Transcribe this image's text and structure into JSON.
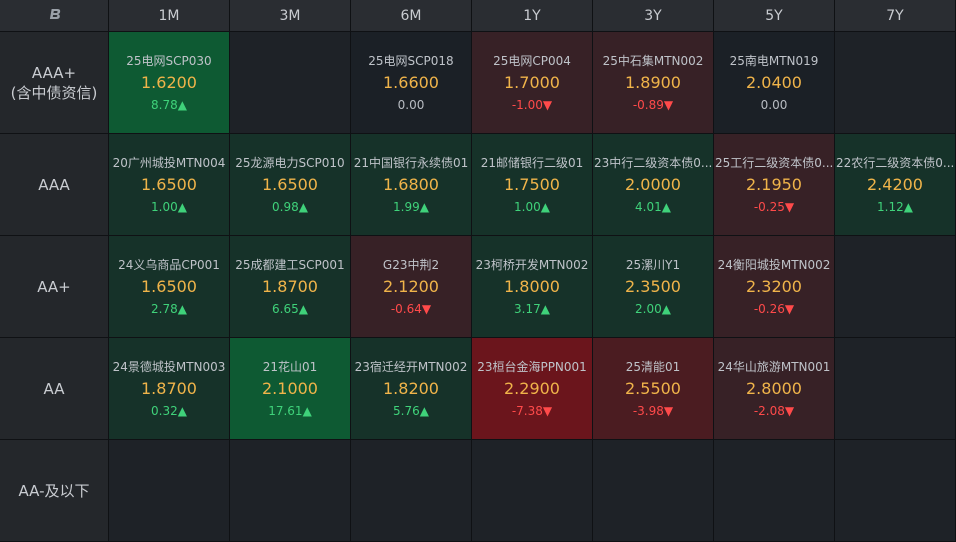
{
  "corner_icon": "logo-icon",
  "columns": [
    "1M",
    "3M",
    "6M",
    "1Y",
    "3Y",
    "5Y",
    "7Y"
  ],
  "rows": [
    {
      "label_lines": [
        "AAA+",
        "(含中债资信)"
      ],
      "cells": [
        {
          "name": "25电网SCP030",
          "rate": "1.6200",
          "change": "8.78",
          "dir": "up",
          "tint": "g3"
        },
        null,
        {
          "name": "25电网SCP018",
          "rate": "1.6600",
          "change": "0.00",
          "dir": "flat",
          "tint": "neutral"
        },
        {
          "name": "25电网CP004",
          "rate": "1.7000",
          "change": "-1.00",
          "dir": "down",
          "tint": "r1"
        },
        {
          "name": "25中石集MTN002",
          "rate": "1.8900",
          "change": "-0.89",
          "dir": "down",
          "tint": "r1"
        },
        {
          "name": "25南电MTN019",
          "rate": "2.0400",
          "change": "0.00",
          "dir": "flat",
          "tint": "neutral"
        },
        null
      ]
    },
    {
      "label_lines": [
        "AAA"
      ],
      "cells": [
        {
          "name": "20广州城投MTN004",
          "rate": "1.6500",
          "change": "1.00",
          "dir": "up",
          "tint": "g1"
        },
        {
          "name": "25龙源电力SCP010",
          "rate": "1.6500",
          "change": "0.98",
          "dir": "up",
          "tint": "g1"
        },
        {
          "name": "21中国银行永续债01",
          "rate": "1.6800",
          "change": "1.99",
          "dir": "up",
          "tint": "g1"
        },
        {
          "name": "21邮储银行二级01",
          "rate": "1.7500",
          "change": "1.00",
          "dir": "up",
          "tint": "g1"
        },
        {
          "name": "23中行二级资本债0...",
          "rate": "2.0000",
          "change": "4.01",
          "dir": "up",
          "tint": "g1"
        },
        {
          "name": "25工行二级资本债0...",
          "rate": "2.1950",
          "change": "-0.25",
          "dir": "down",
          "tint": "r1"
        },
        {
          "name": "22农行二级资本债0...",
          "rate": "2.4200",
          "change": "1.12",
          "dir": "up",
          "tint": "g1"
        }
      ]
    },
    {
      "label_lines": [
        "AA+"
      ],
      "cells": [
        {
          "name": "24义乌商品CP001",
          "rate": "1.6500",
          "change": "2.78",
          "dir": "up",
          "tint": "g1"
        },
        {
          "name": "25成都建工SCP001",
          "rate": "1.8700",
          "change": "6.65",
          "dir": "up",
          "tint": "g1"
        },
        {
          "name": "G23中荆2",
          "rate": "2.1200",
          "change": "-0.64",
          "dir": "down",
          "tint": "r1"
        },
        {
          "name": "23柯桥开发MTN002",
          "rate": "1.8000",
          "change": "3.17",
          "dir": "up",
          "tint": "g1"
        },
        {
          "name": "25漯川Y1",
          "rate": "2.3500",
          "change": "2.00",
          "dir": "up",
          "tint": "g1"
        },
        {
          "name": "24衡阳城投MTN002",
          "rate": "2.3200",
          "change": "-0.26",
          "dir": "down",
          "tint": "r1"
        },
        null
      ]
    },
    {
      "label_lines": [
        "AA"
      ],
      "cells": [
        {
          "name": "24景德城投MTN003",
          "rate": "1.8700",
          "change": "0.32",
          "dir": "up",
          "tint": "g1"
        },
        {
          "name": "21花山01",
          "rate": "2.1000",
          "change": "17.61",
          "dir": "up",
          "tint": "g3"
        },
        {
          "name": "23宿迁经开MTN002",
          "rate": "1.8200",
          "change": "5.76",
          "dir": "up",
          "tint": "g1"
        },
        {
          "name": "23桓台金海PPN001",
          "rate": "2.2900",
          "change": "-7.38",
          "dir": "down",
          "tint": "r3"
        },
        {
          "name": "25清能01",
          "rate": "2.5500",
          "change": "-3.98",
          "dir": "down",
          "tint": "r2"
        },
        {
          "name": "24华山旅游MTN001",
          "rate": "2.8000",
          "change": "-2.08",
          "dir": "down",
          "tint": "r1"
        },
        null
      ]
    },
    {
      "label_lines": [
        "AA-及以下"
      ],
      "cells": [
        null,
        null,
        null,
        null,
        null,
        null,
        null
      ]
    }
  ],
  "arrows": {
    "up": "▲",
    "down": "▼",
    "flat": ""
  }
}
